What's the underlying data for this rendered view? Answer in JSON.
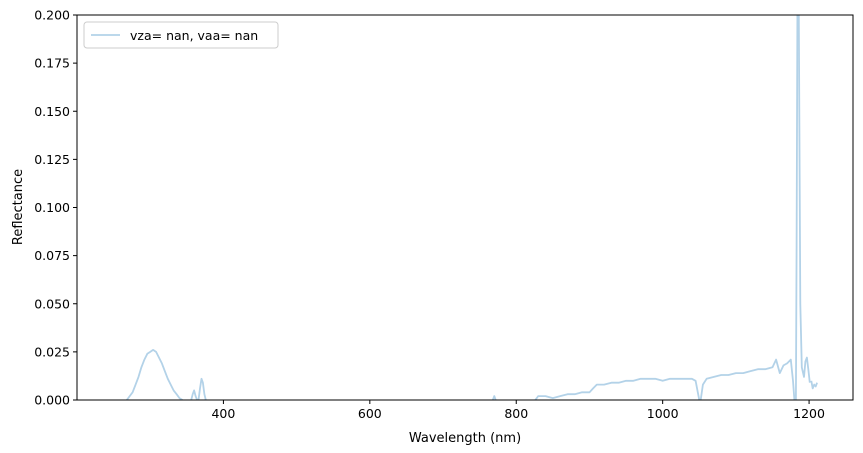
{
  "chart_data": {
    "type": "line",
    "title": "",
    "xlabel": "Wavelength (nm)",
    "ylabel": "Reflectance",
    "xlim": [
      200,
      1260
    ],
    "ylim": [
      0,
      0.2
    ],
    "x_ticks": [
      {
        "value": 400,
        "label": "400"
      },
      {
        "value": 600,
        "label": "600"
      },
      {
        "value": 800,
        "label": "800"
      },
      {
        "value": 1000,
        "label": "1000"
      },
      {
        "value": 1200,
        "label": "1200"
      }
    ],
    "y_ticks": [
      {
        "value": 0.0,
        "label": "0.000"
      },
      {
        "value": 0.025,
        "label": "0.025"
      },
      {
        "value": 0.05,
        "label": "0.050"
      },
      {
        "value": 0.075,
        "label": "0.075"
      },
      {
        "value": 0.1,
        "label": "0.100"
      },
      {
        "value": 0.125,
        "label": "0.125"
      },
      {
        "value": 0.15,
        "label": "0.150"
      },
      {
        "value": 0.175,
        "label": "0.175"
      },
      {
        "value": 0.2,
        "label": "0.200"
      }
    ],
    "grid": false,
    "legend": {
      "position": "top-left",
      "entries": [
        "vza= nan, vaa= nan"
      ]
    },
    "series": [
      {
        "name": "vza= nan, vaa= nan",
        "color": "#b3d2e8",
        "segments": [
          [
            [
              268,
              0.0
            ],
            [
              272,
              0.002
            ],
            [
              276,
              0.004
            ],
            [
              280,
              0.008
            ],
            [
              284,
              0.012
            ],
            [
              288,
              0.017
            ],
            [
              292,
              0.021
            ],
            [
              296,
              0.024
            ],
            [
              300,
              0.025
            ],
            [
              304,
              0.026
            ],
            [
              308,
              0.025
            ],
            [
              312,
              0.022
            ],
            [
              316,
              0.019
            ],
            [
              320,
              0.015
            ],
            [
              324,
              0.011
            ],
            [
              328,
              0.008
            ],
            [
              332,
              0.005
            ],
            [
              336,
              0.003
            ],
            [
              340,
              0.001
            ],
            [
              344,
              0.0
            ]
          ],
          [
            [
              356,
              0.0
            ],
            [
              358,
              0.003
            ],
            [
              360,
              0.005
            ],
            [
              362,
              0.002
            ],
            [
              364,
              0.0
            ]
          ],
          [
            [
              366,
              0.0
            ],
            [
              368,
              0.006
            ],
            [
              370,
              0.011
            ],
            [
              372,
              0.009
            ],
            [
              374,
              0.003
            ],
            [
              376,
              0.0
            ]
          ],
          [
            [
              768,
              0.0
            ],
            [
              770,
              0.002
            ],
            [
              772,
              0.0
            ]
          ],
          [
            [
              826,
              0.0
            ],
            [
              830,
              0.002
            ],
            [
              840,
              0.002
            ],
            [
              850,
              0.001
            ],
            [
              860,
              0.002
            ],
            [
              870,
              0.003
            ],
            [
              880,
              0.003
            ],
            [
              890,
              0.004
            ],
            [
              900,
              0.004
            ],
            [
              905,
              0.006
            ],
            [
              910,
              0.008
            ],
            [
              920,
              0.008
            ],
            [
              930,
              0.009
            ],
            [
              940,
              0.009
            ],
            [
              950,
              0.01
            ],
            [
              960,
              0.01
            ],
            [
              970,
              0.011
            ],
            [
              980,
              0.011
            ],
            [
              990,
              0.011
            ],
            [
              1000,
              0.01
            ],
            [
              1010,
              0.011
            ],
            [
              1020,
              0.011
            ],
            [
              1030,
              0.011
            ],
            [
              1040,
              0.011
            ],
            [
              1045,
              0.01
            ],
            [
              1048,
              0.004
            ],
            [
              1050,
              0.0
            ]
          ],
          [
            [
              1052,
              0.0
            ],
            [
              1055,
              0.008
            ],
            [
              1060,
              0.011
            ],
            [
              1070,
              0.012
            ],
            [
              1080,
              0.013
            ],
            [
              1090,
              0.013
            ],
            [
              1100,
              0.014
            ],
            [
              1110,
              0.014
            ],
            [
              1120,
              0.015
            ],
            [
              1130,
              0.016
            ],
            [
              1140,
              0.016
            ],
            [
              1150,
              0.017
            ],
            [
              1155,
              0.021
            ],
            [
              1160,
              0.014
            ],
            [
              1165,
              0.018
            ],
            [
              1170,
              0.019
            ],
            [
              1175,
              0.021
            ],
            [
              1178,
              0.01
            ],
            [
              1180,
              0.0
            ]
          ],
          [
            [
              1182,
              0.0
            ],
            [
              1183,
              0.08
            ],
            [
              1184,
              0.2
            ]
          ],
          [
            [
              1186,
              0.2
            ],
            [
              1187,
              0.12
            ],
            [
              1188,
              0.05
            ],
            [
              1190,
              0.017
            ],
            [
              1193,
              0.012
            ],
            [
              1195,
              0.02
            ],
            [
              1197,
              0.022
            ],
            [
              1199,
              0.016
            ],
            [
              1201,
              0.009
            ]
          ],
          [
            [
              1203,
              0.01
            ],
            [
              1205,
              0.006
            ],
            [
              1207,
              0.008
            ],
            [
              1209,
              0.007
            ],
            [
              1211,
              0.009
            ]
          ]
        ]
      }
    ]
  }
}
